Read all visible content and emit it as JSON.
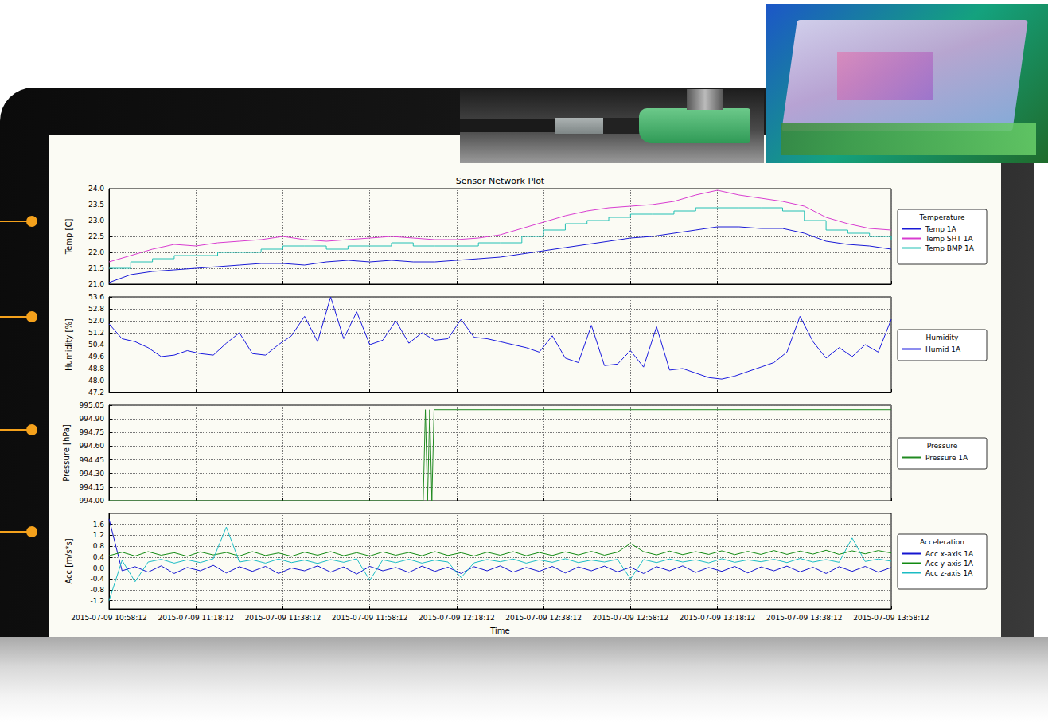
{
  "chart_data": [
    {
      "type": "line",
      "title": "Sensor Network Plot",
      "y_label": "Temp [C]",
      "legend_title": "Temperature",
      "legend": "right",
      "grid": true,
      "marker": "none",
      "tick_labels": "y",
      "xlim": [
        "2015-07-09 10:58:12",
        "2015-07-09 13:58:12"
      ],
      "xticks": [
        "2015-07-09 10:58:12",
        "2015-07-09 11:18:12",
        "2015-07-09 11:38:12",
        "2015-07-09 11:58:12",
        "2015-07-09 12:18:12",
        "2015-07-09 12:38:12",
        "2015-07-09 12:58:12",
        "2015-07-09 13:18:12",
        "2015-07-09 13:38:12",
        "2015-07-09 13:58:12"
      ],
      "ylim": [
        21,
        24
      ],
      "yticks": [
        {
          "value": 21,
          "label": "21.0"
        },
        21.5,
        {
          "value": 22,
          "label": "22.0"
        },
        22.5,
        {
          "value": 23,
          "label": "23.0"
        },
        23.5,
        {
          "value": 24,
          "label": "24.0"
        }
      ],
      "x": [
        "2015-07-09 10:58:12",
        "2015-07-09 11:03:12",
        "2015-07-09 11:08:12",
        "2015-07-09 11:13:12",
        "2015-07-09 11:18:12",
        "2015-07-09 11:23:12",
        "2015-07-09 11:28:12",
        "2015-07-09 11:33:12",
        "2015-07-09 11:38:12",
        "2015-07-09 11:43:12",
        "2015-07-09 11:48:12",
        "2015-07-09 11:53:12",
        "2015-07-09 11:58:12",
        "2015-07-09 12:03:12",
        "2015-07-09 12:08:12",
        "2015-07-09 12:13:12",
        "2015-07-09 12:18:12",
        "2015-07-09 12:23:12",
        "2015-07-09 12:28:12",
        "2015-07-09 12:33:12",
        "2015-07-09 12:38:12",
        "2015-07-09 12:43:12",
        "2015-07-09 12:48:12",
        "2015-07-09 12:53:12",
        "2015-07-09 12:58:12",
        "2015-07-09 13:03:12",
        "2015-07-09 13:08:12",
        "2015-07-09 13:13:12",
        "2015-07-09 13:18:12",
        "2015-07-09 13:23:12",
        "2015-07-09 13:28:12",
        "2015-07-09 13:33:12",
        "2015-07-09 13:38:12",
        "2015-07-09 13:43:12",
        "2015-07-09 13:48:12",
        "2015-07-09 13:53:12",
        "2015-07-09 13:58:12"
      ],
      "series": [
        {
          "name": "Temp 1A",
          "color": "#1a1ad6",
          "line_style": "solid",
          "values": [
            21.05,
            21.3,
            21.4,
            21.45,
            21.5,
            21.55,
            21.6,
            21.65,
            21.65,
            21.6,
            21.7,
            21.75,
            21.7,
            21.75,
            21.7,
            21.7,
            21.75,
            21.8,
            21.85,
            21.95,
            22.05,
            22.15,
            22.25,
            22.35,
            22.45,
            22.5,
            22.6,
            22.7,
            22.8,
            22.8,
            22.75,
            22.75,
            22.6,
            22.35,
            22.25,
            22.2,
            22.1
          ]
        },
        {
          "name": "Temp SHT 1A",
          "color": "#d83cd0",
          "line_style": "solid",
          "values": [
            21.7,
            21.9,
            22.1,
            22.25,
            22.2,
            22.3,
            22.35,
            22.4,
            22.5,
            22.4,
            22.35,
            22.4,
            22.45,
            22.5,
            22.45,
            22.4,
            22.4,
            22.45,
            22.55,
            22.75,
            22.95,
            23.15,
            23.3,
            23.4,
            23.45,
            23.5,
            23.6,
            23.8,
            23.95,
            23.8,
            23.7,
            23.6,
            23.45,
            23.1,
            22.9,
            22.75,
            22.7
          ]
        },
        {
          "name": "Temp BMP 1A",
          "color": "#22c0b4",
          "line_style": "step",
          "values": [
            21.5,
            21.7,
            21.8,
            21.9,
            21.9,
            22.0,
            22.0,
            22.1,
            22.2,
            22.2,
            22.1,
            22.2,
            22.2,
            22.3,
            22.2,
            22.2,
            22.2,
            22.3,
            22.3,
            22.5,
            22.7,
            22.9,
            23.0,
            23.1,
            23.2,
            23.2,
            23.3,
            23.4,
            23.4,
            23.4,
            23.4,
            23.3,
            23.0,
            22.7,
            22.6,
            22.5,
            22.4
          ]
        }
      ]
    },
    {
      "type": "line",
      "y_label": "Humidity [%]",
      "legend_title": "Humidity",
      "legend": "right",
      "grid": true,
      "marker": "none",
      "tick_labels": "y",
      "xlim": [
        "2015-07-09 10:58:12",
        "2015-07-09 13:58:12"
      ],
      "xticks": [
        "2015-07-09 10:58:12",
        "2015-07-09 11:18:12",
        "2015-07-09 11:38:12",
        "2015-07-09 11:58:12",
        "2015-07-09 12:18:12",
        "2015-07-09 12:38:12",
        "2015-07-09 12:58:12",
        "2015-07-09 13:18:12",
        "2015-07-09 13:38:12",
        "2015-07-09 13:58:12"
      ],
      "ylim": [
        47.2,
        53.6
      ],
      "yticks": [
        47.2,
        {
          "value": 48,
          "label": "48.0"
        },
        48.8,
        49.6,
        50.4,
        51.2,
        {
          "value": 52,
          "label": "52.0"
        },
        52.8,
        53.6
      ],
      "x": [
        "2015-07-09 10:58:12",
        "2015-07-09 11:01:12",
        "2015-07-09 11:04:12",
        "2015-07-09 11:07:12",
        "2015-07-09 11:10:12",
        "2015-07-09 11:13:12",
        "2015-07-09 11:16:12",
        "2015-07-09 11:19:12",
        "2015-07-09 11:22:12",
        "2015-07-09 11:25:12",
        "2015-07-09 11:28:12",
        "2015-07-09 11:31:12",
        "2015-07-09 11:34:12",
        "2015-07-09 11:37:12",
        "2015-07-09 11:40:12",
        "2015-07-09 11:43:12",
        "2015-07-09 11:46:12",
        "2015-07-09 11:49:12",
        "2015-07-09 11:52:12",
        "2015-07-09 11:55:12",
        "2015-07-09 11:58:12",
        "2015-07-09 12:01:12",
        "2015-07-09 12:04:12",
        "2015-07-09 12:07:12",
        "2015-07-09 12:10:12",
        "2015-07-09 12:13:12",
        "2015-07-09 12:16:12",
        "2015-07-09 12:19:12",
        "2015-07-09 12:22:12",
        "2015-07-09 12:25:12",
        "2015-07-09 12:28:12",
        "2015-07-09 12:31:12",
        "2015-07-09 12:34:12",
        "2015-07-09 12:37:12",
        "2015-07-09 12:40:12",
        "2015-07-09 12:43:12",
        "2015-07-09 12:46:12",
        "2015-07-09 12:49:12",
        "2015-07-09 12:52:12",
        "2015-07-09 12:55:12",
        "2015-07-09 12:58:12",
        "2015-07-09 13:01:12",
        "2015-07-09 13:04:12",
        "2015-07-09 13:07:12",
        "2015-07-09 13:10:12",
        "2015-07-09 13:13:12",
        "2015-07-09 13:16:12",
        "2015-07-09 13:19:12",
        "2015-07-09 13:22:12",
        "2015-07-09 13:25:12",
        "2015-07-09 13:28:12",
        "2015-07-09 13:31:12",
        "2015-07-09 13:34:12",
        "2015-07-09 13:37:12",
        "2015-07-09 13:40:12",
        "2015-07-09 13:43:12",
        "2015-07-09 13:46:12",
        "2015-07-09 13:49:12",
        "2015-07-09 13:52:12",
        "2015-07-09 13:55:12",
        "2015-07-09 13:58:12"
      ],
      "series": [
        {
          "name": "Humid 1A",
          "color": "#1a1adf",
          "line_style": "solid",
          "values": [
            51.8,
            50.8,
            50.6,
            50.2,
            49.6,
            49.7,
            50.0,
            49.8,
            49.7,
            50.5,
            51.2,
            49.8,
            49.7,
            50.4,
            51.0,
            52.3,
            50.6,
            53.6,
            50.8,
            52.6,
            50.4,
            50.7,
            52.0,
            50.5,
            51.2,
            50.7,
            50.8,
            52.1,
            50.9,
            50.8,
            50.6,
            50.4,
            50.2,
            49.9,
            51.0,
            49.5,
            49.2,
            51.7,
            49.0,
            49.1,
            50.0,
            48.9,
            51.6,
            48.7,
            48.8,
            48.5,
            48.2,
            48.1,
            48.3,
            48.6,
            48.9,
            49.2,
            49.9,
            52.3,
            50.6,
            49.5,
            50.2,
            49.6,
            50.4,
            49.9,
            52.1
          ]
        }
      ]
    },
    {
      "type": "line",
      "y_label": "Pressure [hPa]",
      "legend_title": "Pressure",
      "legend": "right",
      "grid": true,
      "marker": "none",
      "tick_labels": "y",
      "xlim": [
        "2015-07-09 10:58:12",
        "2015-07-09 13:58:12"
      ],
      "xticks": [
        "2015-07-09 10:58:12",
        "2015-07-09 11:18:12",
        "2015-07-09 11:38:12",
        "2015-07-09 11:58:12",
        "2015-07-09 12:18:12",
        "2015-07-09 12:38:12",
        "2015-07-09 12:58:12",
        "2015-07-09 13:18:12",
        "2015-07-09 13:38:12",
        "2015-07-09 13:58:12"
      ],
      "ylim": [
        994,
        995.05
      ],
      "yticks": [
        {
          "value": 994,
          "label": "994.00"
        },
        994.15,
        {
          "value": 994.3,
          "label": "994.30"
        },
        994.45,
        {
          "value": 994.6,
          "label": "994.60"
        },
        994.75,
        {
          "value": 994.9,
          "label": "994.90"
        },
        995.05
      ],
      "x": [
        "2015-07-09 10:58:12",
        "2015-07-09 12:10:30",
        "2015-07-09 12:11:00",
        "2015-07-09 12:11:30",
        "2015-07-09 12:12:00",
        "2015-07-09 12:12:30",
        "2015-07-09 12:13:00",
        "2015-07-09 13:58:12"
      ],
      "series": [
        {
          "name": "Pressure 1A",
          "color": "#218a21",
          "line_style": "solid",
          "values": [
            994,
            994,
            995,
            994,
            995,
            994,
            995,
            995
          ]
        }
      ]
    },
    {
      "type": "line",
      "y_label": "Acc [m/s*s]",
      "x_label": "Time",
      "legend_title": "Acceleration",
      "legend": "right",
      "grid": true,
      "marker": "none",
      "xlim": [
        "2015-07-09 10:58:12",
        "2015-07-09 13:58:12"
      ],
      "xticks": [
        "2015-07-09 10:58:12",
        "2015-07-09 11:18:12",
        "2015-07-09 11:38:12",
        "2015-07-09 11:58:12",
        "2015-07-09 12:18:12",
        "2015-07-09 12:38:12",
        "2015-07-09 12:58:12",
        "2015-07-09 13:18:12",
        "2015-07-09 13:38:12",
        "2015-07-09 13:58:12"
      ],
      "ylim": [
        -1.5,
        2
      ],
      "yticks": [
        -1.2,
        -0.8,
        -0.4,
        {
          "value": 0,
          "label": "0.0"
        },
        0.4,
        0.8,
        1.2,
        1.6
      ],
      "x": [
        "2015-07-09 10:58:12",
        "2015-07-09 11:01:12",
        "2015-07-09 11:04:12",
        "2015-07-09 11:07:12",
        "2015-07-09 11:10:12",
        "2015-07-09 11:13:12",
        "2015-07-09 11:16:12",
        "2015-07-09 11:19:12",
        "2015-07-09 11:22:12",
        "2015-07-09 11:25:12",
        "2015-07-09 11:28:12",
        "2015-07-09 11:31:12",
        "2015-07-09 11:34:12",
        "2015-07-09 11:37:12",
        "2015-07-09 11:40:12",
        "2015-07-09 11:43:12",
        "2015-07-09 11:46:12",
        "2015-07-09 11:49:12",
        "2015-07-09 11:52:12",
        "2015-07-09 11:55:12",
        "2015-07-09 11:58:12",
        "2015-07-09 12:01:12",
        "2015-07-09 12:04:12",
        "2015-07-09 12:07:12",
        "2015-07-09 12:10:12",
        "2015-07-09 12:13:12",
        "2015-07-09 12:16:12",
        "2015-07-09 12:19:12",
        "2015-07-09 12:22:12",
        "2015-07-09 12:25:12",
        "2015-07-09 12:28:12",
        "2015-07-09 12:31:12",
        "2015-07-09 12:34:12",
        "2015-07-09 12:37:12",
        "2015-07-09 12:40:12",
        "2015-07-09 12:43:12",
        "2015-07-09 12:46:12",
        "2015-07-09 12:49:12",
        "2015-07-09 12:52:12",
        "2015-07-09 12:55:12",
        "2015-07-09 12:58:12",
        "2015-07-09 13:01:12",
        "2015-07-09 13:04:12",
        "2015-07-09 13:07:12",
        "2015-07-09 13:10:12",
        "2015-07-09 13:13:12",
        "2015-07-09 13:16:12",
        "2015-07-09 13:19:12",
        "2015-07-09 13:22:12",
        "2015-07-09 13:25:12",
        "2015-07-09 13:28:12",
        "2015-07-09 13:31:12",
        "2015-07-09 13:34:12",
        "2015-07-09 13:37:12",
        "2015-07-09 13:40:12",
        "2015-07-09 13:43:12",
        "2015-07-09 13:46:12",
        "2015-07-09 13:49:12",
        "2015-07-09 13:52:12",
        "2015-07-09 13:55:12",
        "2015-07-09 13:58:12"
      ],
      "series": [
        {
          "name": "Acc x-axis 1A",
          "color": "#1515d0",
          "line_style": "solid",
          "values": [
            1.8,
            -0.1,
            0.05,
            -0.15,
            0.08,
            -0.2,
            0.02,
            -0.1,
            0.1,
            -0.18,
            0.05,
            -0.12,
            0.06,
            -0.2,
            0.0,
            -0.1,
            0.08,
            -0.15,
            0.04,
            -0.22,
            0.06,
            -0.1,
            0.02,
            -0.16,
            0.07,
            -0.12,
            0.03,
            -0.2,
            0.05,
            -0.1,
            0.08,
            -0.15,
            0.02,
            -0.12,
            0.06,
            -0.18,
            0.04,
            -0.1,
            0.07,
            -0.14,
            0.03,
            -0.2,
            0.05,
            -0.1,
            0.08,
            -0.16,
            0.02,
            -0.12,
            0.06,
            -0.18,
            0.04,
            -0.1,
            0.07,
            -0.14,
            0.03,
            -0.2,
            0.05,
            -0.12,
            0.06,
            -0.15,
            0.02
          ]
        },
        {
          "name": "Acc y-axis 1A",
          "color": "#128a12",
          "line_style": "solid",
          "values": [
            0.45,
            0.58,
            0.44,
            0.6,
            0.47,
            0.56,
            0.43,
            0.59,
            0.48,
            0.57,
            0.44,
            0.6,
            0.46,
            0.55,
            0.43,
            0.58,
            0.47,
            0.6,
            0.45,
            0.56,
            0.44,
            0.59,
            0.47,
            0.57,
            0.45,
            0.6,
            0.46,
            0.56,
            0.44,
            0.58,
            0.47,
            0.6,
            0.45,
            0.57,
            0.46,
            0.59,
            0.48,
            0.61,
            0.47,
            0.58,
            0.9,
            0.6,
            0.48,
            0.62,
            0.49,
            0.6,
            0.5,
            0.63,
            0.49,
            0.61,
            0.5,
            0.64,
            0.5,
            0.62,
            0.51,
            0.65,
            0.5,
            0.63,
            0.52,
            0.64,
            0.55
          ]
        },
        {
          "name": "Acc z-axis 1A",
          "color": "#1bbcc4",
          "line_style": "solid",
          "values": [
            -1.2,
            0.28,
            -0.5,
            0.22,
            0.32,
            0.18,
            0.3,
            0.2,
            0.34,
            1.5,
            0.22,
            0.3,
            0.18,
            0.33,
            0.2,
            0.29,
            0.17,
            0.31,
            0.21,
            0.34,
            -0.45,
            0.3,
            0.2,
            0.32,
            0.18,
            0.29,
            0.22,
            -0.35,
            0.19,
            0.31,
            0.23,
            0.33,
            0.18,
            0.3,
            0.21,
            0.34,
            0.2,
            0.29,
            0.22,
            0.32,
            -0.4,
            0.31,
            0.2,
            0.33,
            0.22,
            0.3,
            0.19,
            0.34,
            0.21,
            0.3,
            0.23,
            0.32,
            0.2,
            0.35,
            0.22,
            0.31,
            0.21,
            1.1,
            0.24,
            0.33,
            0.25
          ]
        }
      ]
    }
  ]
}
